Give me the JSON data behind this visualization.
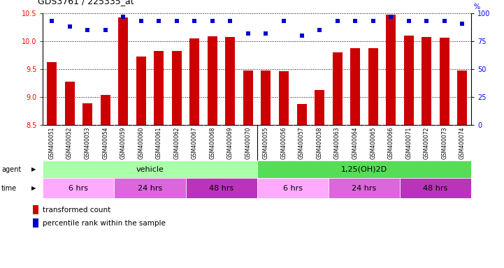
{
  "title": "GDS3761 / 225335_at",
  "samples": [
    "GSM400051",
    "GSM400052",
    "GSM400053",
    "GSM400054",
    "GSM400059",
    "GSM400060",
    "GSM400061",
    "GSM400062",
    "GSM400067",
    "GSM400068",
    "GSM400069",
    "GSM400070",
    "GSM400055",
    "GSM400056",
    "GSM400057",
    "GSM400058",
    "GSM400063",
    "GSM400064",
    "GSM400065",
    "GSM400066",
    "GSM400071",
    "GSM400072",
    "GSM400073",
    "GSM400074"
  ],
  "bar_values": [
    9.62,
    9.27,
    8.88,
    9.04,
    10.43,
    9.72,
    9.83,
    9.83,
    10.05,
    10.09,
    10.08,
    9.47,
    9.47,
    9.46,
    8.87,
    9.12,
    9.8,
    9.87,
    9.87,
    10.48,
    10.1,
    10.08,
    10.06,
    9.47
  ],
  "percentile_values": [
    93,
    88,
    85,
    85,
    97,
    93,
    93,
    93,
    93,
    93,
    93,
    82,
    82,
    93,
    80,
    85,
    93,
    93,
    93,
    97,
    93,
    93,
    93,
    91
  ],
  "bar_color": "#cc0000",
  "dot_color": "#0000cc",
  "ylim_left": [
    8.5,
    10.5
  ],
  "ylim_right": [
    0,
    100
  ],
  "yticks_left": [
    8.5,
    9.0,
    9.5,
    10.0,
    10.5
  ],
  "yticks_right": [
    0,
    25,
    50,
    75,
    100
  ],
  "agent_vehicle_color": "#aaffaa",
  "agent_treatment_color": "#55dd55",
  "time_colors": [
    "#ffaaff",
    "#dd66dd",
    "#bb33bb",
    "#ffaaff",
    "#dd66dd",
    "#bb33bb"
  ],
  "vehicle_label": "vehicle",
  "treatment_label": "1,25(OH)2D",
  "time_groups": [
    "6 hrs",
    "24 hrs",
    "48 hrs",
    "6 hrs",
    "24 hrs",
    "48 hrs"
  ],
  "time_counts": [
    4,
    4,
    4,
    4,
    4,
    4
  ],
  "bar_color_legend": "#cc0000",
  "dot_color_legend": "#0000cc",
  "background_color": "#ffffff",
  "xtick_bg": "#dddddd"
}
